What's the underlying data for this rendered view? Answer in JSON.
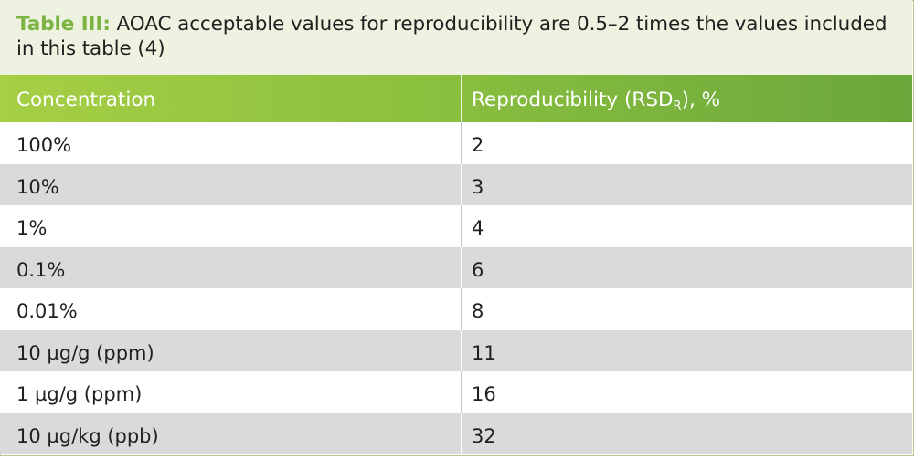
{
  "caption": {
    "lead": "Table III:",
    "text": " AOAC acceptable values for reproducibility are 0.5–2 times the values included in this table (4)"
  },
  "table": {
    "headers": {
      "concentration": "Concentration",
      "reproducibility_prefix": "Reproducibility (RSD",
      "reproducibility_sub": "R",
      "reproducibility_suffix": "), %"
    },
    "rows": [
      {
        "concentration": "100%",
        "rsd": "2"
      },
      {
        "concentration": "10%",
        "rsd": "3"
      },
      {
        "concentration": "1%",
        "rsd": "4"
      },
      {
        "concentration": "0.1%",
        "rsd": "6"
      },
      {
        "concentration": "0.01%",
        "rsd": "8"
      },
      {
        "concentration": "10 µg/g (ppm)",
        "rsd": "11"
      },
      {
        "concentration": "1 µg/g (ppm)",
        "rsd": "16"
      },
      {
        "concentration": "10 µg/kg (ppb)",
        "rsd": "32"
      }
    ]
  },
  "colors": {
    "accent_green": "#7cb342",
    "header_gradient_start": "#a6cf45",
    "header_gradient_end": "#6aa73c",
    "caption_bg": "#eef3e1",
    "row_shade": "#d9dadc"
  }
}
